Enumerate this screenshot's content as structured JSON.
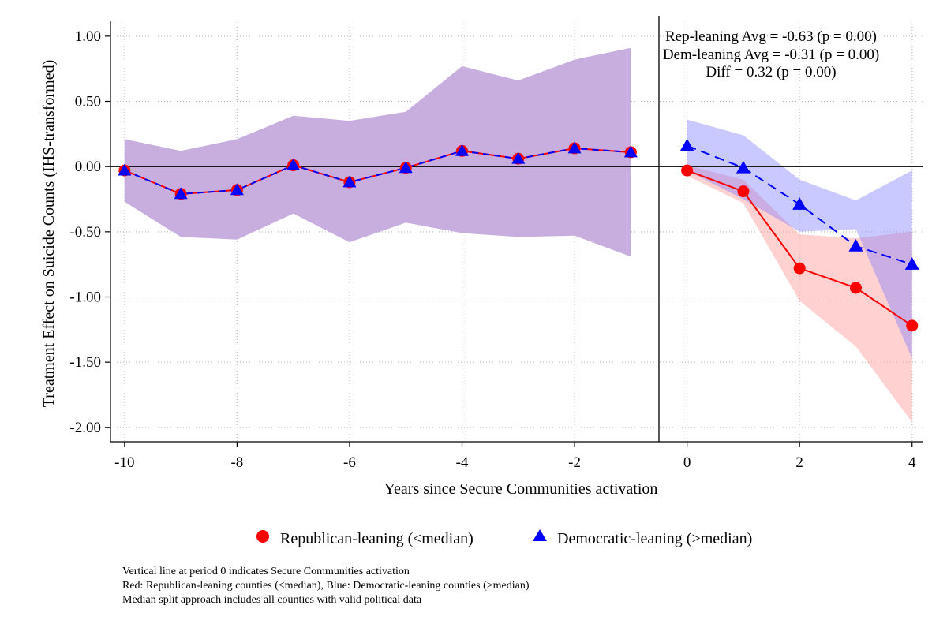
{
  "chart_data": {
    "type": "line",
    "title": "",
    "xlabel": "Years since Secure Communities activation",
    "ylabel": "Treatment Effect on Suicide Counts (IHS-transformed)",
    "xlim": [
      -10.25,
      4.2
    ],
    "ylim": [
      -2.11,
      1.12
    ],
    "xticks": [
      -10,
      -8,
      -6,
      -4,
      -2,
      0,
      2,
      4
    ],
    "xtick_labels": [
      "-10",
      "-8",
      "-6",
      "-4",
      "-2",
      "0",
      "2",
      "4"
    ],
    "yticks": [
      1.0,
      0.5,
      0.0,
      -0.5,
      -1.0,
      -1.5,
      -2.0
    ],
    "ytick_labels": [
      "1.00",
      "0.50",
      "0.00",
      "-0.50",
      "-1.00",
      "-1.50",
      "-2.00"
    ],
    "grid": true,
    "reference_lines": {
      "x": -0.5,
      "y": 0
    },
    "pre_period": {
      "x": [
        -10,
        -9,
        -8,
        -7,
        -6,
        -5,
        -4,
        -3,
        -2,
        -1
      ],
      "values": [
        -0.03,
        -0.21,
        -0.18,
        0.01,
        -0.12,
        -0.01,
        0.12,
        0.06,
        0.14,
        0.11
      ],
      "ci_low": [
        -0.27,
        -0.54,
        -0.56,
        -0.36,
        -0.58,
        -0.43,
        -0.51,
        -0.54,
        -0.53,
        -0.69
      ],
      "ci_high": [
        0.21,
        0.12,
        0.21,
        0.39,
        0.35,
        0.42,
        0.77,
        0.66,
        0.82,
        0.91
      ]
    },
    "series": [
      {
        "name": "Republican-leaning (≤median)",
        "color": "#ff0000",
        "marker": "circle",
        "line_style": "solid",
        "x": [
          0,
          1,
          2,
          3,
          4
        ],
        "values": [
          -0.03,
          -0.19,
          -0.78,
          -0.93,
          -1.22
        ],
        "ci_low": [
          -0.07,
          -0.28,
          -1.03,
          -1.38,
          -1.96
        ],
        "ci_high": [
          0.01,
          -0.1,
          -0.52,
          -0.55,
          -0.5
        ]
      },
      {
        "name": "Democratic-leaning (>median)",
        "color": "#0000ff",
        "marker": "triangle",
        "line_style": "dashed",
        "x": [
          0,
          1,
          2,
          3,
          4
        ],
        "values": [
          0.16,
          -0.01,
          -0.29,
          -0.61,
          -0.75
        ],
        "ci_low": [
          -0.03,
          -0.25,
          -0.5,
          -0.48,
          -1.47
        ],
        "ci_high": [
          0.36,
          0.24,
          -0.1,
          -0.26,
          -0.03
        ]
      }
    ],
    "annotations": [
      "Rep-leaning Avg = -0.63 (p = 0.00)",
      "Dem-leaning Avg = -0.31 (p = 0.00)",
      "Diff = 0.32 (p = 0.00)"
    ],
    "legend": {
      "placement": "bottom",
      "entries": [
        "Republican-leaning (≤median)",
        "Democratic-leaning (>median)"
      ]
    },
    "notes": [
      "Vertical line at period 0 indicates Secure Communities activation",
      "Red: Republican-leaning counties (≤median), Blue: Democratic-leaning counties (>median)",
      "Median split approach includes all counties with valid political data"
    ],
    "colors": {
      "republican": "#ff0000",
      "democratic": "#0000ff",
      "pre_band": "#c7aedf",
      "rep_band": "#ffd0d0",
      "dem_band": "#c6c6ff",
      "overlap_band": "#c6aee3"
    }
  }
}
